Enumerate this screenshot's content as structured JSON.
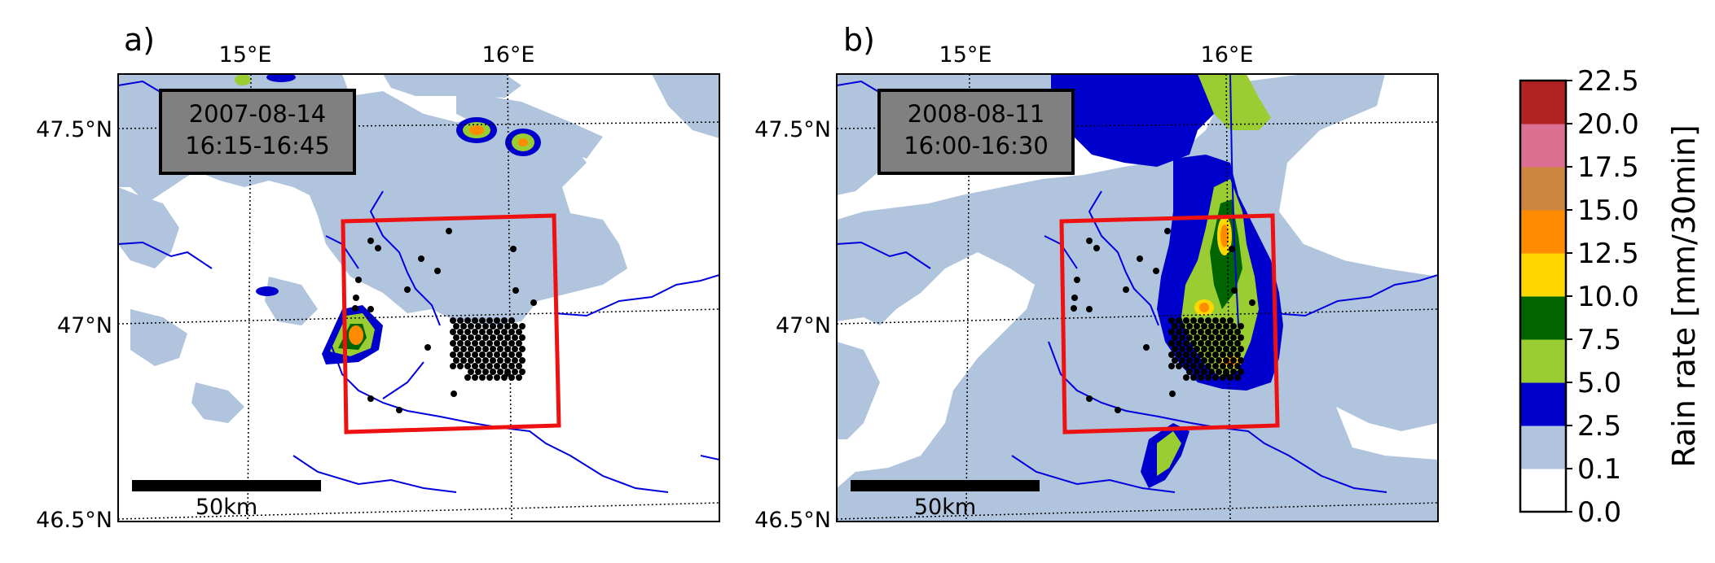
{
  "panels": [
    {
      "id": "a",
      "label": "a)",
      "date": "2007-08-14",
      "time_window": "16:15-16:45",
      "lon_labels": [
        "15°E",
        "16°E"
      ],
      "lat_labels": [
        "47.5°N",
        "47°N",
        "46.5°N"
      ],
      "scalebar_label": "50km"
    },
    {
      "id": "b",
      "label": "b)",
      "date": "2008-08-11",
      "time_window": "16:00-16:30",
      "lon_labels": [
        "15°E",
        "16°E"
      ],
      "lat_labels": [
        "47.5°N",
        "47°N",
        "46.5°N"
      ],
      "scalebar_label": "50km"
    }
  ],
  "colorbar": {
    "label": "Rain rate [mm/30min]",
    "ticks": [
      "22.5",
      "20.0",
      "17.5",
      "15.0",
      "12.5",
      "10.0",
      "7.5",
      "5.0",
      "2.5",
      "0.1",
      "0.0"
    ],
    "classes": [
      {
        "from": 0.0,
        "to": 0.1,
        "color": "#ffffff"
      },
      {
        "from": 0.1,
        "to": 2.5,
        "color": "#b0c4de"
      },
      {
        "from": 2.5,
        "to": 5.0,
        "color": "#0000cd"
      },
      {
        "from": 5.0,
        "to": 7.5,
        "color": "#9acd32"
      },
      {
        "from": 7.5,
        "to": 10.0,
        "color": "#006400"
      },
      {
        "from": 10.0,
        "to": 12.5,
        "color": "#ffd700"
      },
      {
        "from": 12.5,
        "to": 15.0,
        "color": "#ff8c00"
      },
      {
        "from": 15.0,
        "to": 17.5,
        "color": "#cd853f"
      },
      {
        "from": 17.5,
        "to": 20.0,
        "color": "#db7093"
      },
      {
        "from": 20.0,
        "to": 22.5,
        "color": "#b22222"
      }
    ]
  },
  "colors": {
    "domain_box": "#ee1111",
    "rivers": "#0000dd",
    "stations": "#000000",
    "date_box_fill": "#808080"
  }
}
